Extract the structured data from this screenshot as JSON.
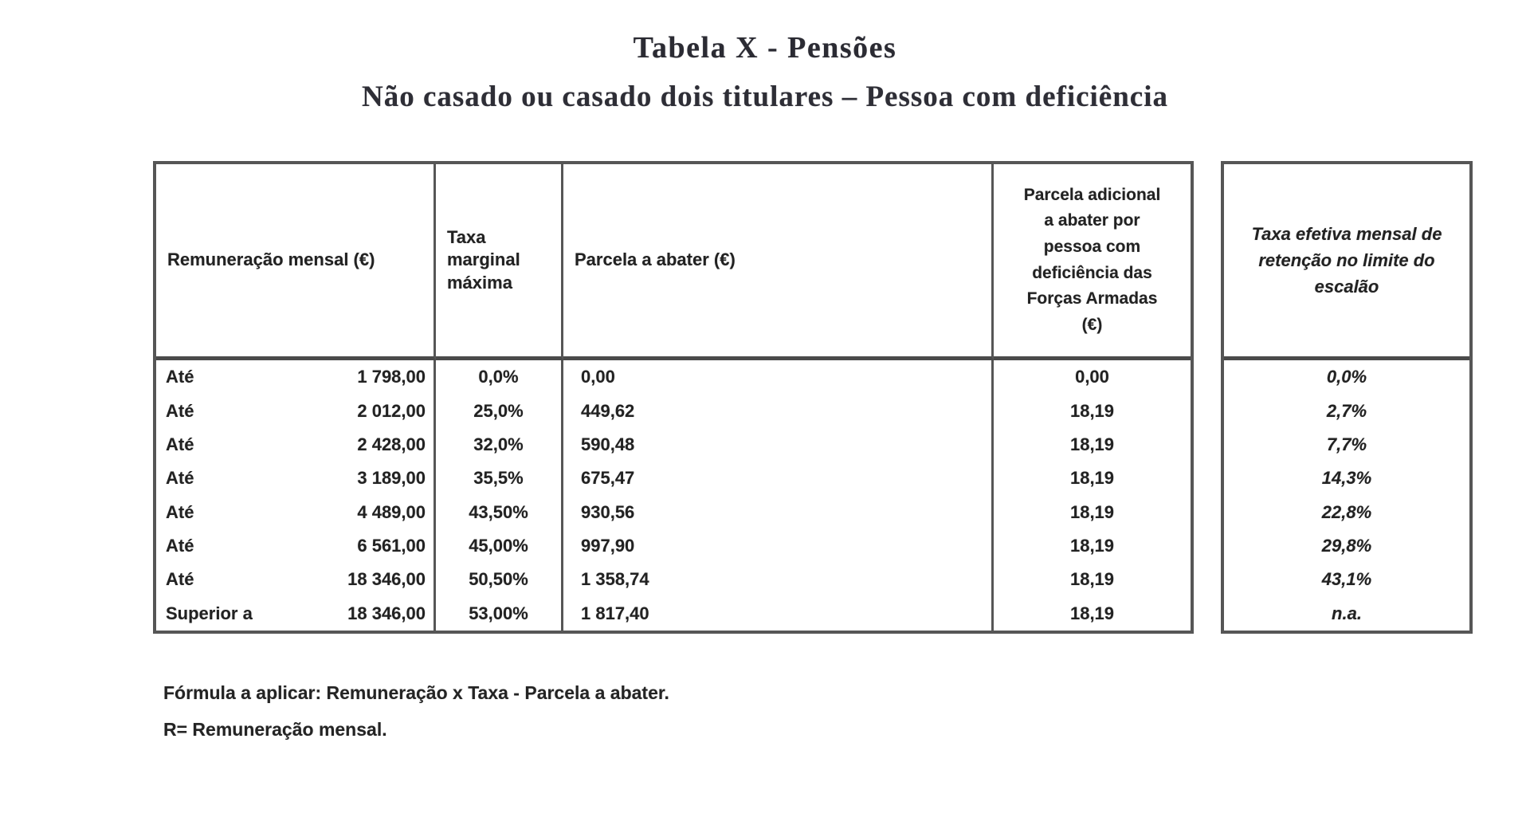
{
  "page": {
    "title": "Tabela X - Pensões",
    "subtitle": "Não casado ou casado dois titulares – Pessoa com deficiência",
    "background_color": "#ffffff",
    "text_color": "#222222",
    "border_color": "#565656"
  },
  "table": {
    "headers": {
      "remuneracao": "Remuneração mensal (€)",
      "taxa_marginal": "Taxa\nmarginal\nmáxima",
      "parcela_abater": "Parcela a abater (€)",
      "parcela_adicional": "Parcela adicional\na abater por\npessoa com\ndeficiência das\nForças Armadas\n(€)",
      "taxa_efetiva": "Taxa efetiva mensal de retenção no limite do escalão"
    },
    "rows": [
      {
        "prefix": "Até",
        "limite": "1 798,00",
        "taxa": "0,0%",
        "parcela": "0,00",
        "adicional": "0,00",
        "efetiva": "0,0%"
      },
      {
        "prefix": "Até",
        "limite": "2 012,00",
        "taxa": "25,0%",
        "parcela": "449,62",
        "adicional": "18,19",
        "efetiva": "2,7%"
      },
      {
        "prefix": "Até",
        "limite": "2 428,00",
        "taxa": "32,0%",
        "parcela": "590,48",
        "adicional": "18,19",
        "efetiva": "7,7%"
      },
      {
        "prefix": "Até",
        "limite": "3 189,00",
        "taxa": "35,5%",
        "parcela": "675,47",
        "adicional": "18,19",
        "efetiva": "14,3%"
      },
      {
        "prefix": "Até",
        "limite": "4 489,00",
        "taxa": "43,50%",
        "parcela": "930,56",
        "adicional": "18,19",
        "efetiva": "22,8%"
      },
      {
        "prefix": "Até",
        "limite": "6 561,00",
        "taxa": "45,00%",
        "parcela": "997,90",
        "adicional": "18,19",
        "efetiva": "29,8%"
      },
      {
        "prefix": "Até",
        "limite": "18 346,00",
        "taxa": "50,50%",
        "parcela": "1 358,74",
        "adicional": "18,19",
        "efetiva": "43,1%"
      },
      {
        "prefix": "Superior a",
        "limite": "18 346,00",
        "taxa": "53,00%",
        "parcela": "1 817,40",
        "adicional": "18,19",
        "efetiva": "n.a."
      }
    ]
  },
  "footer": {
    "formula": "Fórmula a aplicar: Remuneração x Taxa - Parcela a abater.",
    "note": "R= Remuneração mensal."
  }
}
